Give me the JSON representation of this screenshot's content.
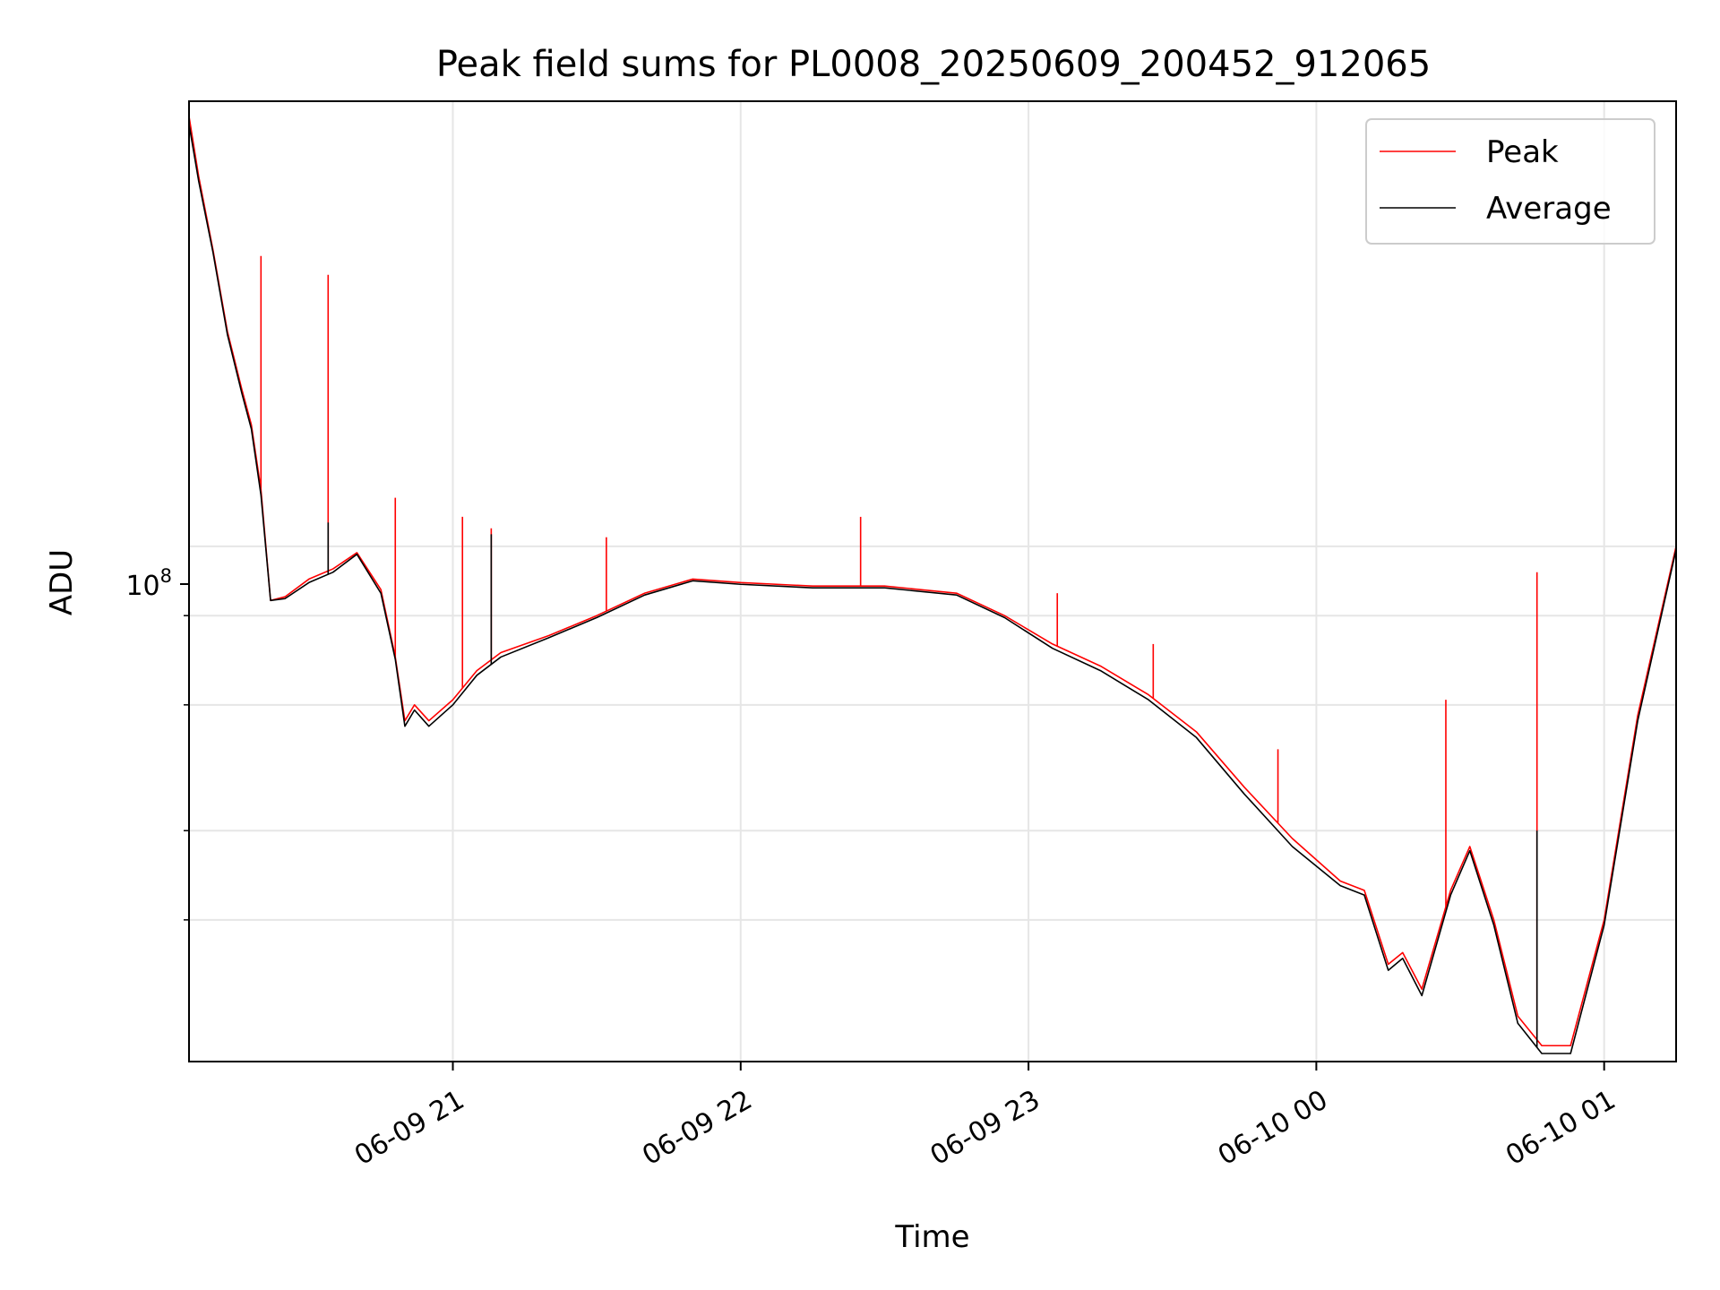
{
  "chart_data": {
    "type": "line",
    "title": "Peak field sums for PL0008_20250609_200452_912065",
    "xlabel": "Time",
    "ylabel": "ADU",
    "y_scale": "log",
    "grid": true,
    "legend_position": "top-right",
    "x_range": [
      "2025-06-09 20:05",
      "2025-06-10 01:15"
    ],
    "ylim": [
      19000000,
      420000000
    ],
    "x_ticks": [
      "06-09 21",
      "06-09 22",
      "06-09 23",
      "06-10 00",
      "06-10 01"
    ],
    "x_tick_times": [
      "2025-06-09 21:00",
      "2025-06-09 22:00",
      "2025-06-09 23:00",
      "2025-06-10 00:00",
      "2025-06-10 01:00"
    ],
    "y_tick_label_base": "10",
    "y_tick_label_exp": "8",
    "y_major_tick": 100000000,
    "y_minor_ticks": [
      30000000,
      40000000,
      60000000,
      80000000
    ],
    "series": [
      {
        "name": "Peak",
        "color": "#ff0000",
        "points": [
          [
            "2025-06-09 20:05",
            400000000
          ],
          [
            "2025-06-09 20:07",
            330000000
          ],
          [
            "2025-06-09 20:10",
            260000000
          ],
          [
            "2025-06-09 20:13",
            200000000
          ],
          [
            "2025-06-09 20:16",
            166000000
          ],
          [
            "2025-06-09 20:18",
            148000000
          ],
          [
            "2025-06-09 20:20",
            120000000
          ],
          [
            "2025-06-09 20:22",
            84000000
          ],
          [
            "2025-06-09 20:25",
            85000000
          ],
          [
            "2025-06-09 20:30",
            90000000
          ],
          [
            "2025-06-09 20:35",
            93000000
          ],
          [
            "2025-06-09 20:40",
            98000000
          ],
          [
            "2025-06-09 20:45",
            87000000
          ],
          [
            "2025-06-09 20:48",
            70000000
          ],
          [
            "2025-06-09 20:50",
            57000000
          ],
          [
            "2025-06-09 20:52",
            60000000
          ],
          [
            "2025-06-09 20:55",
            57000000
          ],
          [
            "2025-06-09 21:00",
            61000000
          ],
          [
            "2025-06-09 21:05",
            67000000
          ],
          [
            "2025-06-09 21:10",
            71000000
          ],
          [
            "2025-06-09 21:20",
            75000000
          ],
          [
            "2025-06-09 21:30",
            80000000
          ],
          [
            "2025-06-09 21:40",
            86000000
          ],
          [
            "2025-06-09 21:50",
            90000000
          ],
          [
            "2025-06-09 22:00",
            89000000
          ],
          [
            "2025-06-09 22:15",
            88000000
          ],
          [
            "2025-06-09 22:30",
            88000000
          ],
          [
            "2025-06-09 22:45",
            86000000
          ],
          [
            "2025-06-09 22:55",
            80000000
          ],
          [
            "2025-06-09 23:05",
            73000000
          ],
          [
            "2025-06-09 23:15",
            68000000
          ],
          [
            "2025-06-09 23:25",
            62000000
          ],
          [
            "2025-06-09 23:35",
            55000000
          ],
          [
            "2025-06-09 23:45",
            46000000
          ],
          [
            "2025-06-09 23:55",
            39000000
          ],
          [
            "2025-06-10 00:05",
            34000000
          ],
          [
            "2025-06-10 00:10",
            33000000
          ],
          [
            "2025-06-10 00:15",
            26000000
          ],
          [
            "2025-06-10 00:18",
            27000000
          ],
          [
            "2025-06-10 00:22",
            24000000
          ],
          [
            "2025-06-10 00:28",
            33000000
          ],
          [
            "2025-06-10 00:32",
            38000000
          ],
          [
            "2025-06-10 00:37",
            30000000
          ],
          [
            "2025-06-10 00:42",
            22000000
          ],
          [
            "2025-06-10 00:47",
            20000000
          ],
          [
            "2025-06-10 00:53",
            20000000
          ],
          [
            "2025-06-10 01:00",
            30000000
          ],
          [
            "2025-06-10 01:07",
            58000000
          ],
          [
            "2025-06-10 01:15",
            100000000
          ]
        ],
        "spikes": [
          [
            "2025-06-09 20:20",
            255000000
          ],
          [
            "2025-06-09 20:34",
            240000000
          ],
          [
            "2025-06-09 20:48",
            117000000
          ],
          [
            "2025-06-09 21:02",
            110000000
          ],
          [
            "2025-06-09 21:08",
            106000000
          ],
          [
            "2025-06-09 21:32",
            103000000
          ],
          [
            "2025-06-09 22:25",
            110000000
          ],
          [
            "2025-06-09 23:06",
            86000000
          ],
          [
            "2025-06-09 23:26",
            73000000
          ],
          [
            "2025-06-09 23:52",
            52000000
          ],
          [
            "2025-06-10 00:27",
            61000000
          ],
          [
            "2025-06-10 00:46",
            92000000
          ]
        ]
      },
      {
        "name": "Average",
        "color": "#000000",
        "points": [
          [
            "2025-06-09 20:05",
            390000000
          ],
          [
            "2025-06-09 20:07",
            325000000
          ],
          [
            "2025-06-09 20:10",
            258000000
          ],
          [
            "2025-06-09 20:13",
            198000000
          ],
          [
            "2025-06-09 20:16",
            164000000
          ],
          [
            "2025-06-09 20:18",
            146000000
          ],
          [
            "2025-06-09 20:20",
            118000000
          ],
          [
            "2025-06-09 20:22",
            84000000
          ],
          [
            "2025-06-09 20:25",
            84500000
          ],
          [
            "2025-06-09 20:30",
            89000000
          ],
          [
            "2025-06-09 20:35",
            92000000
          ],
          [
            "2025-06-09 20:40",
            97500000
          ],
          [
            "2025-06-09 20:45",
            86000000
          ],
          [
            "2025-06-09 20:48",
            69500000
          ],
          [
            "2025-06-09 20:50",
            56000000
          ],
          [
            "2025-06-09 20:52",
            59000000
          ],
          [
            "2025-06-09 20:55",
            56000000
          ],
          [
            "2025-06-09 21:00",
            60000000
          ],
          [
            "2025-06-09 21:05",
            66000000
          ],
          [
            "2025-06-09 21:10",
            70000000
          ],
          [
            "2025-06-09 21:20",
            74500000
          ],
          [
            "2025-06-09 21:30",
            79500000
          ],
          [
            "2025-06-09 21:40",
            85500000
          ],
          [
            "2025-06-09 21:50",
            89500000
          ],
          [
            "2025-06-09 22:00",
            88500000
          ],
          [
            "2025-06-09 22:15",
            87500000
          ],
          [
            "2025-06-09 22:30",
            87500000
          ],
          [
            "2025-06-09 22:45",
            85500000
          ],
          [
            "2025-06-09 22:55",
            79500000
          ],
          [
            "2025-06-09 23:05",
            72000000
          ],
          [
            "2025-06-09 23:15",
            67000000
          ],
          [
            "2025-06-09 23:25",
            61000000
          ],
          [
            "2025-06-09 23:35",
            54000000
          ],
          [
            "2025-06-09 23:45",
            45000000
          ],
          [
            "2025-06-09 23:55",
            38000000
          ],
          [
            "2025-06-10 00:05",
            33500000
          ],
          [
            "2025-06-10 00:10",
            32500000
          ],
          [
            "2025-06-10 00:15",
            25500000
          ],
          [
            "2025-06-10 00:18",
            26500000
          ],
          [
            "2025-06-10 00:22",
            23500000
          ],
          [
            "2025-06-10 00:28",
            32500000
          ],
          [
            "2025-06-10 00:32",
            37500000
          ],
          [
            "2025-06-10 00:37",
            29500000
          ],
          [
            "2025-06-10 00:42",
            21500000
          ],
          [
            "2025-06-10 00:47",
            19500000
          ],
          [
            "2025-06-10 00:53",
            19500000
          ],
          [
            "2025-06-10 01:00",
            29500000
          ],
          [
            "2025-06-10 01:07",
            57000000
          ],
          [
            "2025-06-10 01:15",
            99000000
          ]
        ],
        "spikes": [
          [
            "2025-06-09 20:34",
            108000000
          ],
          [
            "2025-06-09 21:08",
            104000000
          ],
          [
            "2025-06-10 00:46",
            40000000
          ]
        ]
      }
    ]
  }
}
